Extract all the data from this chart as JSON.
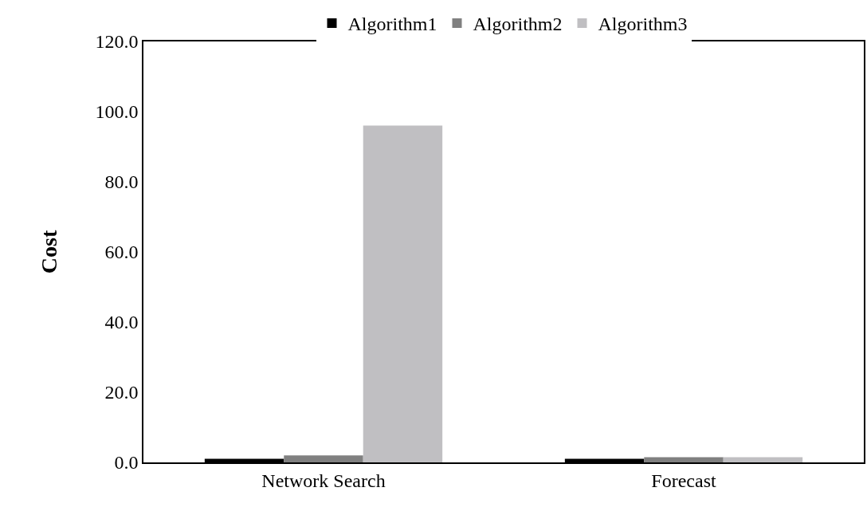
{
  "chart_data": {
    "type": "bar",
    "ylabel": "Cost",
    "categories": [
      "Network Search",
      "Forecast"
    ],
    "series": [
      {
        "name": "Algorithm1",
        "color": "#000000",
        "values": [
          1.0,
          1.0
        ]
      },
      {
        "name": "Algorithm2",
        "color": "#808080",
        "values": [
          2.0,
          1.5
        ]
      },
      {
        "name": "Algorithm3",
        "color": "#c0bfc2",
        "values": [
          96.0,
          1.5
        ]
      }
    ],
    "ylim": [
      0,
      120
    ],
    "yticks": [
      {
        "value": 0,
        "label": "0.0"
      },
      {
        "value": 20,
        "label": "20.0"
      },
      {
        "value": 40,
        "label": "40.0"
      },
      {
        "value": 60,
        "label": "60.0"
      },
      {
        "value": 80,
        "label": "80.0"
      },
      {
        "value": 100,
        "label": "100.0"
      },
      {
        "value": 120,
        "label": "120.0"
      }
    ],
    "grid": false,
    "legend": "top"
  }
}
